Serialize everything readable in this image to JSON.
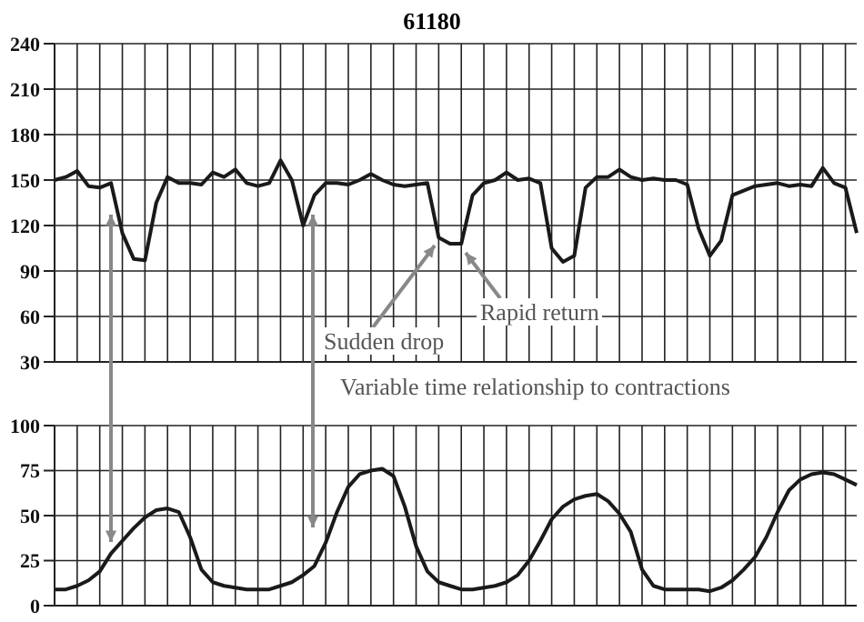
{
  "chart_data": [
    {
      "type": "line",
      "title": "61180",
      "annotations": [
        "Sudden drop",
        "Rapid return",
        "Variable time relationship to contractions"
      ],
      "categories": [
        null,
        null,
        null,
        null,
        null,
        null,
        null,
        null,
        null,
        null,
        null,
        null,
        null,
        null,
        null,
        null,
        null,
        null,
        null,
        null,
        null,
        null,
        null,
        null,
        null,
        null,
        null,
        null,
        null,
        null,
        null,
        null,
        null,
        null,
        null,
        null,
        null,
        null,
        null,
        null,
        null,
        null,
        null,
        null,
        null,
        null,
        null,
        null,
        null,
        null,
        null,
        null,
        null,
        null,
        null,
        null,
        null,
        null,
        null,
        null,
        null,
        null,
        null,
        null,
        null,
        null,
        null,
        null,
        null,
        null,
        null,
        null
      ],
      "series": [
        {
          "color": "#1a1a1a",
          "values": [
            150,
            152,
            156,
            146,
            145,
            148,
            115,
            98,
            97,
            135,
            152,
            148,
            148,
            147,
            155,
            152,
            157,
            148,
            146,
            148,
            163,
            150,
            120,
            140,
            148,
            148,
            147,
            150,
            154,
            150,
            147,
            146,
            147,
            148,
            112,
            108,
            108,
            140,
            148,
            150,
            155,
            150,
            151,
            148,
            105,
            96,
            100,
            145,
            152,
            152,
            157,
            152,
            150,
            151,
            150,
            150,
            147,
            118,
            100,
            110,
            140,
            143,
            146,
            147,
            148,
            146,
            147,
            146,
            158,
            148,
            145,
            115
          ]
        }
      ],
      "ylim": [
        30,
        240
      ],
      "yticks": [
        30,
        60,
        90,
        120,
        150,
        180,
        210,
        240
      ],
      "grid": true,
      "tick_labels": "y",
      "marker": "none",
      "line_style": "solid"
    },
    {
      "type": "line",
      "categories": [
        null,
        null,
        null,
        null,
        null,
        null,
        null,
        null,
        null,
        null,
        null,
        null,
        null,
        null,
        null,
        null,
        null,
        null,
        null,
        null,
        null,
        null,
        null,
        null,
        null,
        null,
        null,
        null,
        null,
        null,
        null,
        null,
        null,
        null,
        null,
        null,
        null,
        null,
        null,
        null,
        null,
        null,
        null,
        null,
        null,
        null,
        null,
        null,
        null,
        null,
        null,
        null,
        null,
        null,
        null,
        null,
        null,
        null,
        null,
        null,
        null,
        null,
        null,
        null,
        null,
        null,
        null,
        null,
        null,
        null,
        null,
        null
      ],
      "series": [
        {
          "color": "#1a1a1a",
          "values": [
            9,
            9,
            11,
            14,
            19,
            29,
            36,
            43,
            49,
            53,
            54,
            52,
            38,
            20,
            13,
            11,
            10,
            9,
            9,
            9,
            11,
            13,
            17,
            22,
            35,
            52,
            66,
            73,
            75,
            76,
            72,
            55,
            33,
            19,
            13,
            11,
            9,
            9,
            10,
            11,
            13,
            17,
            25,
            36,
            48,
            55,
            59,
            61,
            62,
            58,
            51,
            41,
            20,
            11,
            9,
            9,
            9,
            9,
            8,
            10,
            14,
            20,
            27,
            38,
            52,
            64,
            70,
            73,
            74,
            73,
            70,
            67
          ]
        }
      ],
      "ylim": [
        0,
        100
      ],
      "yticks": [
        0,
        25,
        50,
        75,
        100
      ],
      "grid": true,
      "tick_labels": "y",
      "marker": "none",
      "line_style": "solid"
    }
  ]
}
